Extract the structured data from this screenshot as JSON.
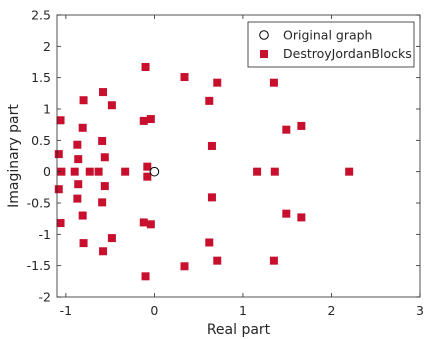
{
  "chart_data": {
    "type": "scatter",
    "xlabel": "Real part",
    "ylabel": "Imaginary part",
    "xlim": [
      -1.1,
      3
    ],
    "ylim": [
      -2,
      2.5
    ],
    "x_ticks": [
      -1,
      0,
      1,
      2,
      3
    ],
    "y_ticks": [
      -2,
      -1.5,
      -1,
      -0.5,
      0,
      0.5,
      1,
      1.5,
      2,
      2.5
    ],
    "grid": false,
    "legend_position": "top-right",
    "series": [
      {
        "name": "Original graph",
        "marker": "open-circle",
        "color": "#000000",
        "points": [
          [
            0,
            0
          ]
        ]
      },
      {
        "name": "DestroyJordanBlocks",
        "marker": "filled-square",
        "color": "#c8102e",
        "points": [
          [
            -1.06,
            0.82
          ],
          [
            -1.06,
            -0.82
          ],
          [
            -1.08,
            0.28
          ],
          [
            -1.08,
            -0.28
          ],
          [
            -1.05,
            0
          ],
          [
            -0.9,
            0
          ],
          [
            -0.73,
            0
          ],
          [
            -0.63,
            0
          ],
          [
            -0.33,
            0
          ],
          [
            -0.87,
            0.43
          ],
          [
            -0.87,
            -0.43
          ],
          [
            -0.86,
            0.2
          ],
          [
            -0.86,
            -0.2
          ],
          [
            -0.81,
            0.7
          ],
          [
            -0.81,
            -0.7
          ],
          [
            -0.8,
            1.14
          ],
          [
            -0.8,
            -1.14
          ],
          [
            -0.58,
            1.27
          ],
          [
            -0.58,
            -1.27
          ],
          [
            -0.59,
            0.49
          ],
          [
            -0.59,
            -0.49
          ],
          [
            -0.48,
            1.06
          ],
          [
            -0.48,
            -1.06
          ],
          [
            -0.56,
            0.23
          ],
          [
            -0.56,
            -0.23
          ],
          [
            -0.12,
            0.81
          ],
          [
            -0.12,
            -0.81
          ],
          [
            -0.04,
            0.84
          ],
          [
            -0.04,
            -0.84
          ],
          [
            -0.08,
            0.08
          ],
          [
            -0.08,
            -0.08
          ],
          [
            -0.1,
            1.67
          ],
          [
            -0.1,
            -1.67
          ],
          [
            0.34,
            1.51
          ],
          [
            0.34,
            -1.51
          ],
          [
            0.62,
            1.13
          ],
          [
            0.62,
            -1.13
          ],
          [
            0.65,
            0.41
          ],
          [
            0.65,
            -0.41
          ],
          [
            0.71,
            1.42
          ],
          [
            0.71,
            -1.42
          ],
          [
            1.16,
            0
          ],
          [
            1.36,
            0
          ],
          [
            2.2,
            0
          ],
          [
            1.35,
            1.42
          ],
          [
            1.35,
            -1.42
          ],
          [
            1.49,
            0.67
          ],
          [
            1.49,
            -0.67
          ],
          [
            1.66,
            0.73
          ],
          [
            1.66,
            -0.73
          ]
        ]
      }
    ]
  }
}
